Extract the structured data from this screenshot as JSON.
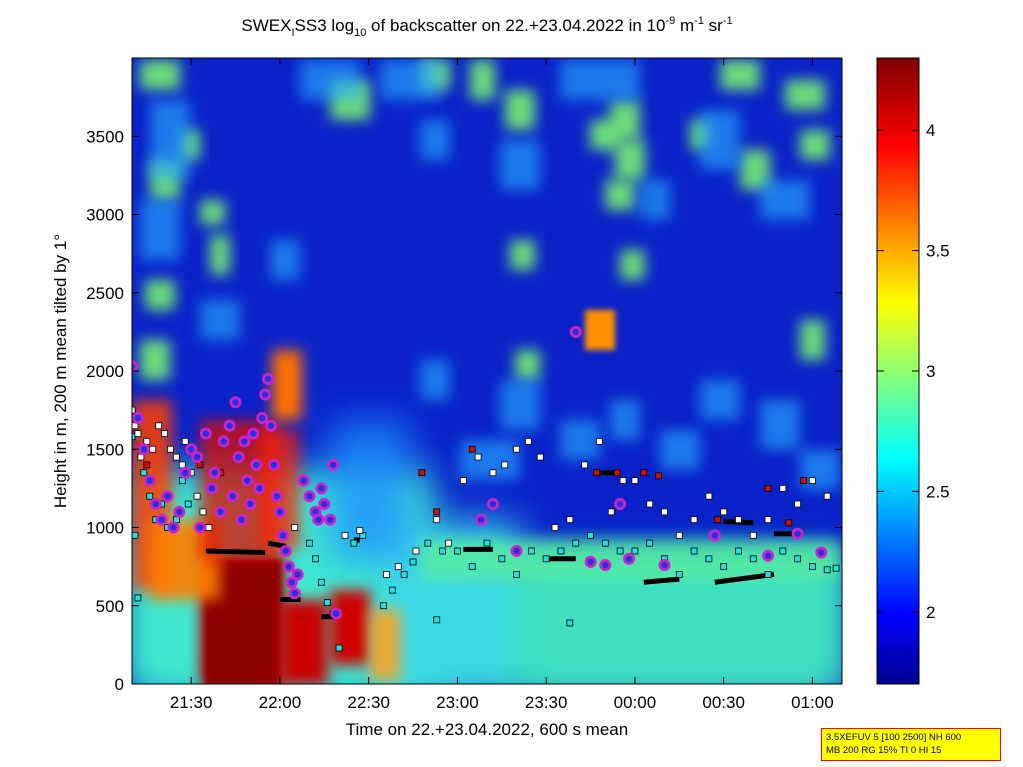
{
  "chart_data": {
    "type": "heatmap",
    "title": {
      "p1": "SWEX",
      "sub1": "I",
      "p2": "SS3 log",
      "sub2": "10",
      "p3": " of backscatter on 22.+23.04.2022 in 10",
      "sup1": "-9",
      "p4": " m",
      "sup2": "-1",
      "p5": " sr",
      "sup3": "-1"
    },
    "xlabel": "Time on 22.+23.04.2022, 600 s mean",
    "ylabel": "Height in m, 200 m mean tilted by 1°",
    "x_range": [
      "21:10",
      "01:10"
    ],
    "x_ticks": [
      "21:30",
      "22:00",
      "22:30",
      "23:00",
      "23:30",
      "00:00",
      "00:30",
      "01:00"
    ],
    "ylim": [
      0,
      4000
    ],
    "y_ticks": [
      0,
      500,
      1000,
      1500,
      2000,
      2500,
      3000,
      3500
    ],
    "colorbar": {
      "range": [
        1.7,
        4.3
      ],
      "ticks": [
        "2",
        "2.5",
        "3",
        "3.5",
        "4"
      ],
      "colormap": "jet"
    },
    "colors": {
      "marker_magenta": "#cc22cc",
      "marker_blue_core": "#2233dd",
      "marker_white": "#ffffff",
      "marker_cyan": "#22e0e0",
      "marker_red": "#cc1100",
      "marker_black": "#000000"
    },
    "features": [
      {
        "kind": "high_backscatter_column",
        "time_start": "21:33",
        "time_end": "22:00",
        "height_top": 850,
        "value": 4.3
      },
      {
        "kind": "high_backscatter_column",
        "time_start": "21:10",
        "time_end": "21:25",
        "height_top": 1200,
        "value": 3.9
      },
      {
        "kind": "high_backscatter_column",
        "time_start": "22:00",
        "time_end": "22:10",
        "height_top": 550,
        "value": 4.2
      },
      {
        "kind": "high_backscatter_column",
        "time_start": "22:15",
        "time_end": "22:27",
        "height_top": 500,
        "value": 4.1
      },
      {
        "kind": "elevated_plume",
        "time": "22:00",
        "height": 1900,
        "value": 3.7
      },
      {
        "kind": "elevated_patch",
        "time": "23:48",
        "height": 2250,
        "value": 3.7
      }
    ],
    "markers": {
      "magenta_circles": [
        [
          "21:10",
          2030
        ],
        [
          "21:12",
          1700
        ],
        [
          "21:14",
          1500
        ],
        [
          "21:16",
          1300
        ],
        [
          "21:18",
          1150
        ],
        [
          "21:20",
          1050
        ],
        [
          "21:22",
          1200
        ],
        [
          "21:24",
          1000
        ],
        [
          "21:26",
          1100
        ],
        [
          "21:28",
          1350
        ],
        [
          "21:30",
          1500
        ],
        [
          "21:32",
          1450
        ],
        [
          "21:33",
          1000
        ],
        [
          "21:35",
          1600
        ],
        [
          "21:37",
          1250
        ],
        [
          "21:38",
          1350
        ],
        [
          "21:40",
          1100
        ],
        [
          "21:41",
          1550
        ],
        [
          "21:43",
          1650
        ],
        [
          "21:44",
          1200
        ],
        [
          "21:45",
          1800
        ],
        [
          "21:46",
          1450
        ],
        [
          "21:47",
          1050
        ],
        [
          "21:48",
          1550
        ],
        [
          "21:49",
          1300
        ],
        [
          "21:50",
          1150
        ],
        [
          "21:51",
          1600
        ],
        [
          "21:52",
          1400
        ],
        [
          "21:53",
          1250
        ],
        [
          "21:54",
          1700
        ],
        [
          "21:55",
          1850
        ],
        [
          "21:56",
          1950
        ],
        [
          "21:57",
          1650
        ],
        [
          "21:58",
          1400
        ],
        [
          "21:59",
          1200
        ],
        [
          "22:00",
          1100
        ],
        [
          "22:01",
          950
        ],
        [
          "22:02",
          850
        ],
        [
          "22:03",
          750
        ],
        [
          "22:04",
          650
        ],
        [
          "22:05",
          580
        ],
        [
          "22:06",
          700
        ],
        [
          "22:08",
          1300
        ],
        [
          "22:10",
          1200
        ],
        [
          "22:12",
          1100
        ],
        [
          "22:13",
          1050
        ],
        [
          "22:14",
          1250
        ],
        [
          "22:15",
          1150
        ],
        [
          "22:17",
          1050
        ],
        [
          "22:18",
          1400
        ],
        [
          "22:19",
          450
        ],
        [
          "23:40",
          2250
        ],
        [
          "23:55",
          1150
        ],
        [
          "23:12",
          1150
        ],
        [
          "23:08",
          1050
        ],
        [
          "23:20",
          850
        ],
        [
          "23:45",
          780
        ],
        [
          "23:50",
          760
        ],
        [
          "23:58",
          800
        ],
        [
          "00:10",
          760
        ],
        [
          "00:27",
          950
        ],
        [
          "00:45",
          820
        ],
        [
          "00:55",
          960
        ],
        [
          "01:03",
          840
        ]
      ],
      "white_squares": [
        [
          "21:10",
          1750
        ],
        [
          "21:11",
          1650
        ],
        [
          "21:12",
          1600
        ],
        [
          "21:13",
          1450
        ],
        [
          "21:15",
          1550
        ],
        [
          "21:17",
          1500
        ],
        [
          "21:19",
          1650
        ],
        [
          "21:21",
          1600
        ],
        [
          "21:23",
          1500
        ],
        [
          "21:25",
          1450
        ],
        [
          "21:27",
          1400
        ],
        [
          "21:28",
          1550
        ],
        [
          "21:30",
          1350
        ],
        [
          "21:32",
          1200
        ],
        [
          "21:34",
          1100
        ],
        [
          "21:36",
          1000
        ],
        [
          "22:05",
          1000
        ],
        [
          "22:22",
          950
        ],
        [
          "22:27",
          980
        ],
        [
          "22:36",
          700
        ],
        [
          "22:40",
          750
        ],
        [
          "22:46",
          850
        ],
        [
          "22:53",
          1050
        ],
        [
          "22:57",
          900
        ],
        [
          "23:02",
          1300
        ],
        [
          "23:07",
          1450
        ],
        [
          "23:12",
          1350
        ],
        [
          "23:16",
          1400
        ],
        [
          "23:20",
          1500
        ],
        [
          "23:24",
          1550
        ],
        [
          "23:28",
          1450
        ],
        [
          "23:33",
          1000
        ],
        [
          "23:38",
          1050
        ],
        [
          "23:43",
          1400
        ],
        [
          "23:48",
          1550
        ],
        [
          "23:52",
          1100
        ],
        [
          "23:56",
          1300
        ],
        [
          "00:00",
          1300
        ],
        [
          "00:05",
          1150
        ],
        [
          "00:10",
          1100
        ],
        [
          "00:15",
          950
        ],
        [
          "00:20",
          1050
        ],
        [
          "00:25",
          1200
        ],
        [
          "00:30",
          1100
        ],
        [
          "00:35",
          1050
        ],
        [
          "00:40",
          950
        ],
        [
          "00:45",
          1050
        ],
        [
          "00:50",
          1250
        ],
        [
          "00:55",
          1150
        ],
        [
          "01:00",
          1300
        ],
        [
          "01:05",
          1200
        ]
      ],
      "cyan_squares": [
        [
          "21:10",
          1580
        ],
        [
          "21:11",
          950
        ],
        [
          "21:12",
          550
        ],
        [
          "21:14",
          1350
        ],
        [
          "21:16",
          1200
        ],
        [
          "21:18",
          1050
        ],
        [
          "21:20",
          1150
        ],
        [
          "21:22",
          1000
        ],
        [
          "21:25",
          1050
        ],
        [
          "21:27",
          1300
        ],
        [
          "21:29",
          1150
        ],
        [
          "22:10",
          900
        ],
        [
          "22:12",
          800
        ],
        [
          "22:14",
          650
        ],
        [
          "22:16",
          520
        ],
        [
          "22:18",
          450
        ],
        [
          "22:20",
          230
        ],
        [
          "22:25",
          900
        ],
        [
          "22:28",
          950
        ],
        [
          "22:35",
          500
        ],
        [
          "22:38",
          600
        ],
        [
          "22:42",
          700
        ],
        [
          "22:45",
          780
        ],
        [
          "22:50",
          900
        ],
        [
          "22:55",
          850
        ],
        [
          "23:00",
          850
        ],
        [
          "23:05",
          750
        ],
        [
          "23:10",
          900
        ],
        [
          "23:15",
          800
        ],
        [
          "23:20",
          700
        ],
        [
          "23:25",
          850
        ],
        [
          "23:30",
          800
        ],
        [
          "23:35",
          850
        ],
        [
          "23:40",
          900
        ],
        [
          "23:45",
          950
        ],
        [
          "23:50",
          900
        ],
        [
          "23:55",
          850
        ],
        [
          "00:00",
          850
        ],
        [
          "00:05",
          900
        ],
        [
          "00:10",
          800
        ],
        [
          "00:15",
          700
        ],
        [
          "00:20",
          850
        ],
        [
          "00:25",
          800
        ],
        [
          "00:30",
          750
        ],
        [
          "00:35",
          850
        ],
        [
          "00:40",
          800
        ],
        [
          "00:45",
          700
        ],
        [
          "00:50",
          850
        ],
        [
          "00:55",
          800
        ],
        [
          "01:00",
          750
        ],
        [
          "01:05",
          730
        ],
        [
          "01:08",
          740
        ],
        [
          "23:38",
          390
        ],
        [
          "22:53",
          410
        ]
      ],
      "red_squares": [
        [
          "21:15",
          1400
        ],
        [
          "21:33",
          1400
        ],
        [
          "21:40",
          1350
        ],
        [
          "22:48",
          1350
        ],
        [
          "22:53",
          1100
        ],
        [
          "23:05",
          1500
        ],
        [
          "23:47",
          1350
        ],
        [
          "23:54",
          1350
        ],
        [
          "00:03",
          1350
        ],
        [
          "00:08",
          1330
        ],
        [
          "00:28",
          1050
        ],
        [
          "00:52",
          1030
        ],
        [
          "00:57",
          1300
        ],
        [
          "00:45",
          1250
        ]
      ],
      "black_lines": [
        {
          "from": [
            "21:35",
            850
          ],
          "to": [
            "21:55",
            840
          ]
        },
        {
          "from": [
            "22:00",
            540
          ],
          "to": [
            "22:07",
            540
          ]
        },
        {
          "from": [
            "22:14",
            430
          ],
          "to": [
            "22:20",
            430
          ]
        },
        {
          "from": [
            "22:25",
            920
          ],
          "to": [
            "22:27",
            920
          ]
        },
        {
          "from": [
            "23:48",
            1350
          ],
          "to": [
            "23:55",
            1350
          ]
        },
        {
          "from": [
            "00:03",
            650
          ],
          "to": [
            "00:15",
            670
          ]
        },
        {
          "from": [
            "00:27",
            650
          ],
          "to": [
            "00:47",
            700
          ]
        },
        {
          "from": [
            "00:30",
            1040
          ],
          "to": [
            "00:40",
            1030
          ]
        },
        {
          "from": [
            "00:47",
            960
          ],
          "to": [
            "00:55",
            960
          ]
        },
        {
          "from": [
            "23:30",
            800
          ],
          "to": [
            "23:40",
            800
          ]
        },
        {
          "from": [
            "23:02",
            860
          ],
          "to": [
            "23:12",
            860
          ]
        },
        {
          "from": [
            "21:56",
            900
          ],
          "to": [
            "22:02",
            880
          ]
        }
      ]
    }
  },
  "info_box": {
    "line1": "3.5XEFUV 5 [100 2500] NH 600",
    "line2": "MB 200 RG 15% TI 0 HI 15"
  }
}
